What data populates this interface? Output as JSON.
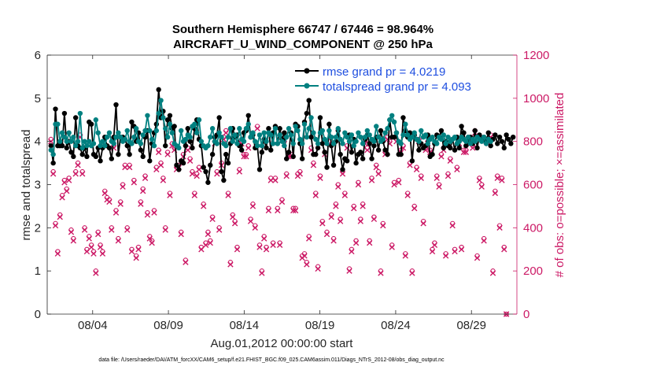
{
  "chart_data": {
    "type": "line",
    "title_line1": "Southern Hemisphere 66747 / 67446 = 98.964%",
    "title_line2": "AIRCRAFT_U_WIND_COMPONENT @ 250 hPa",
    "xlabel": "Aug.01,2012 00:00:00 start",
    "ylabel_left": "rmse and totalspread",
    "ylabel_right": "# of obs: o=possible; ×=assimilated",
    "xlim": [
      1.0,
      32.0
    ],
    "ylim_left": [
      0,
      6
    ],
    "ylim_right": [
      0,
      1200
    ],
    "x_ticks": [
      {
        "value": 4,
        "label": "08/04"
      },
      {
        "value": 9,
        "label": "08/09"
      },
      {
        "value": 14,
        "label": "08/14"
      },
      {
        "value": 19,
        "label": "08/19"
      },
      {
        "value": 24,
        "label": "08/24"
      },
      {
        "value": 29,
        "label": "08/29"
      }
    ],
    "y_ticks_left": [
      "0",
      "1",
      "2",
      "3",
      "4",
      "5",
      "6"
    ],
    "y_ticks_right": [
      "0",
      "200",
      "400",
      "600",
      "800",
      "1000",
      "1200"
    ],
    "series": [
      {
        "name": "rmse grand pr = 4.0219",
        "color": "#000000",
        "axis": "left",
        "values": [
          3.9,
          3.5,
          4.75,
          3.9,
          3.9,
          3.9,
          4.65,
          3.85,
          4.0,
          3.75,
          3.65,
          4.55,
          3.9,
          3.85,
          3.7,
          3.85,
          3.65,
          4.45,
          4.4,
          3.7,
          3.65,
          3.85,
          3.55,
          3.85,
          4.1,
          3.9,
          3.85,
          3.6,
          4.1,
          4.85,
          3.7,
          4.1,
          4.1,
          4.05,
          3.9,
          3.7,
          4.45,
          4.35,
          4.0,
          4.2,
          3.8,
          3.65,
          4.1,
          4.25,
          3.55,
          3.95,
          4.2,
          4.4,
          5.2,
          4.55,
          4.7,
          3.9,
          4.5,
          4.6,
          4.3,
          4.35,
          3.45,
          3.35,
          3.55,
          3.5,
          3.9,
          4.3,
          4.0,
          3.85,
          4.3,
          4.5,
          4.05,
          3.9,
          3.4,
          3.3,
          3.05,
          3.45,
          3.7,
          4.1,
          4.15,
          4.55,
          3.3,
          3.1,
          3.7,
          3.5,
          3.95,
          4.3,
          4.1,
          4.15,
          3.9,
          3.8,
          4.2,
          4.25,
          4.6,
          4.1,
          4.15,
          3.85,
          3.9,
          3.35,
          3.75,
          4.05,
          3.85,
          4.3,
          3.8,
          4.2,
          4.35,
          3.95,
          4.3,
          4.05,
          4.2,
          3.6,
          3.75,
          4.2,
          3.65,
          4.4,
          4.35,
          3.95,
          3.6,
          4.45,
          4.65,
          4.95,
          4.1,
          3.7,
          3.7,
          3.85,
          4.55,
          3.95,
          3.75,
          3.4,
          4.4,
          3.9,
          3.45,
          4.0,
          4.25,
          3.7,
          3.35,
          3.6,
          3.55,
          4.15,
          3.75,
          4.05,
          3.5,
          3.7,
          3.75,
          3.6,
          4.05,
          4.15,
          3.95,
          3.6,
          3.9,
          4.1,
          3.8,
          4.25,
          4.0,
          3.8,
          3.7,
          4.5,
          4.1,
          4.1,
          4.2,
          3.7,
          3.7,
          4.55,
          4.25,
          4.1,
          4.2,
          3.55,
          4.15,
          4.05,
          3.8,
          3.95,
          3.85,
          3.9,
          4.15,
          3.65,
          3.7,
          3.95,
          4.15,
          4.1,
          4.25,
          3.85,
          4.0,
          3.9,
          3.85,
          4.05,
          3.8,
          4.1,
          3.85,
          4.35,
          4.2,
          3.9,
          4.0,
          4.1,
          3.95,
          4.25,
          3.85,
          4.15,
          4.05,
          4.1,
          4.0,
          4.2,
          3.9,
          4.05,
          4.15,
          3.95,
          4.1,
          4.0,
          3.85,
          4.15,
          4.05,
          3.95,
          4.1
        ]
      },
      {
        "name": "totalspread grand pr = 4.093",
        "color": "#008080",
        "axis": "left",
        "values": [
          3.8,
          3.7,
          4.4,
          4.4,
          4.0,
          4.2,
          4.1,
          4.0,
          4.2,
          4.0,
          4.1,
          3.9,
          4.0,
          4.65,
          3.85,
          4.0,
          3.9,
          4.0,
          3.9,
          3.95,
          4.5,
          4.2,
          3.9,
          4.0,
          3.9,
          4.1,
          4.2,
          4.0,
          3.95,
          4.1,
          4.2,
          4.1,
          4.0,
          4.05,
          4.25,
          4.0,
          3.95,
          4.1,
          4.3,
          4.0,
          3.95,
          4.15,
          4.25,
          4.6,
          4.25,
          4.05,
          3.9,
          4.25,
          4.65,
          4.95,
          4.55,
          4.3,
          4.1,
          4.4,
          4.2,
          3.95,
          3.9,
          3.85,
          4.25,
          4.0,
          4.05,
          4.15,
          4.1,
          4.35,
          4.4,
          4.2,
          4.5,
          4.0,
          3.9,
          3.85,
          3.9,
          4.1,
          4.3,
          4.0,
          3.95,
          4.2,
          4.1,
          3.95,
          3.9,
          4.1,
          4.3,
          4.0,
          4.15,
          3.95,
          4.3,
          4.05,
          4.0,
          4.3,
          4.4,
          4.1,
          4.2,
          4.0,
          3.9,
          4.15,
          3.9,
          4.2,
          4.0,
          4.2,
          4.15,
          3.95,
          4.3,
          3.95,
          4.15,
          4.0,
          3.9,
          4.1,
          4.3,
          4.15,
          3.95,
          4.35,
          4.25,
          4.05,
          3.95,
          4.4,
          4.1,
          4.3,
          4.55,
          4.2,
          4.05,
          3.95,
          4.2,
          4.25,
          4.05,
          3.95,
          4.25,
          4.1,
          3.95,
          4.1,
          4.3,
          4.05,
          3.95,
          4.2,
          4.1,
          4.0,
          4.15,
          3.9,
          4.0,
          4.2,
          4.1,
          3.95,
          4.1,
          4.25,
          4.15,
          4.05,
          4.0,
          4.35,
          4.1,
          4.0,
          4.05,
          4.2,
          4.3,
          4.5,
          4.6,
          4.45,
          4.2,
          4.0,
          3.95,
          4.15,
          4.4,
          4.15,
          4.05,
          4.1,
          4.2,
          4.05,
          4.0,
          4.25,
          4.1,
          4.15,
          3.95,
          4.05,
          4.1,
          4.0,
          3.95,
          4.1,
          4.05,
          4.15,
          3.95,
          4.1,
          4.0,
          4.05,
          4.1,
          3.95,
          4.0,
          4.1,
          4.05,
          4.0,
          4.1,
          3.95,
          4.05,
          4.0,
          4.1,
          4.05,
          4.0,
          4.1,
          3.95,
          4.05,
          4.0
        ]
      },
      {
        "name": "possible",
        "color": "#cc1a66",
        "axis": "right",
        "marker": "o",
        "values": [
          810,
          660,
          420,
          290,
          460,
          550,
          620,
          580,
          630,
          390,
          350,
          660,
          700,
          830,
          660,
          400,
          300,
          360,
          320,
          290,
          200,
          380,
          320,
          290,
          570,
          540,
          530,
          400,
          780,
          480,
          350,
          520,
          600,
          690,
          400,
          690,
          300,
          620,
          270,
          310,
          520,
          580,
          640,
          470,
          360,
          340,
          480,
          680,
          760,
          700,
          630,
          400,
          750,
          560,
          790,
          770,
          680,
          690,
          380,
          740,
          250,
          770,
          720,
          660,
          560,
          650,
          680,
          310,
          510,
          330,
          380,
          340,
          450,
          800,
          660,
          400,
          700,
          820,
          850,
          560,
          240,
          460,
          430,
          310,
          670,
          800,
          740,
          740,
          780,
          440,
          510,
          410,
          870,
          320,
          200,
          360,
          310,
          490,
          630,
          330,
          630,
          490,
          330,
          530,
          800,
          650,
          740,
          740,
          490,
          490,
          650,
          660,
          270,
          280,
          240,
          360,
          770,
          700,
          560,
          220,
          640,
          430,
          750,
          380,
          800,
          460,
          350,
          510,
          600,
          440,
          660,
          560,
          780,
          210,
          300,
          500,
          340,
          610,
          440,
          510,
          800,
          770,
          340,
          630,
          450,
          690,
          660,
          200,
          420,
          750,
          820,
          800,
          320,
          610,
          810,
          620,
          760,
          780,
          280,
          560,
          700,
          200,
          500,
          680,
          810,
          640,
          430,
          770,
          800,
          760,
          300,
          330,
          640,
          600,
          740,
          770,
          280,
          650,
          720,
          420,
          300,
          680,
          800,
          310,
          760,
          760,
          820,
          800,
          780,
          850,
          270,
          630,
          600,
          350,
          810,
          800,
          830,
          200,
          570,
          640,
          410,
          630,
          310,
          0
        ]
      },
      {
        "name": "assimilated",
        "color": "#cc1a66",
        "axis": "right",
        "marker": "x",
        "values": [
          800,
          650,
          410,
          280,
          450,
          540,
          610,
          570,
          620,
          380,
          340,
          650,
          690,
          820,
          650,
          390,
          290,
          350,
          310,
          280,
          190,
          370,
          310,
          280,
          560,
          530,
          520,
          390,
          770,
          470,
          340,
          510,
          590,
          680,
          390,
          680,
          290,
          610,
          260,
          300,
          510,
          570,
          630,
          460,
          350,
          330,
          470,
          670,
          750,
          690,
          620,
          390,
          740,
          550,
          780,
          760,
          670,
          680,
          370,
          730,
          240,
          760,
          710,
          650,
          550,
          640,
          670,
          300,
          500,
          320,
          370,
          330,
          440,
          790,
          650,
          390,
          690,
          810,
          840,
          550,
          230,
          450,
          420,
          300,
          660,
          790,
          730,
          730,
          770,
          430,
          500,
          400,
          860,
          310,
          190,
          350,
          300,
          480,
          620,
          320,
          620,
          480,
          320,
          520,
          790,
          640,
          730,
          730,
          480,
          480,
          640,
          650,
          260,
          270,
          230,
          350,
          760,
          690,
          550,
          210,
          630,
          420,
          740,
          370,
          790,
          450,
          340,
          500,
          590,
          430,
          650,
          550,
          770,
          200,
          290,
          490,
          330,
          600,
          430,
          500,
          790,
          760,
          330,
          620,
          440,
          680,
          650,
          190,
          410,
          740,
          810,
          790,
          310,
          600,
          800,
          610,
          750,
          770,
          270,
          550,
          690,
          190,
          490,
          670,
          800,
          630,
          420,
          760,
          790,
          750,
          290,
          320,
          630,
          590,
          730,
          760,
          270,
          640,
          710,
          410,
          290,
          670,
          790,
          300,
          750,
          750,
          810,
          790,
          770,
          840,
          260,
          620,
          590,
          340,
          800,
          790,
          820,
          190,
          560,
          630,
          400,
          620,
          300,
          0
        ]
      }
    ],
    "legend_position": "top-right",
    "footnote": "data file: /Users/raeder/DAI/ATM_forcXX/CAM6_setup/f.e21.FHIST_BGC.f09_025.CAM6assim.011/Diags_NTrS_2012-08/obs_diag_output.nc"
  }
}
